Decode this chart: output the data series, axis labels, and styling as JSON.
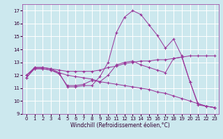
{
  "xlabel": "Windchill (Refroidissement éolien,°C)",
  "bg_color": "#cce8ee",
  "line_color": "#993399",
  "grid_color": "#ffffff",
  "ylim": [
    9,
    17.5
  ],
  "xlim": [
    -0.5,
    23.5
  ],
  "yticks": [
    9,
    10,
    11,
    12,
    13,
    14,
    15,
    16,
    17
  ],
  "xticks": [
    0,
    1,
    2,
    3,
    4,
    5,
    6,
    7,
    8,
    9,
    10,
    11,
    12,
    13,
    14,
    15,
    16,
    17,
    18,
    19,
    20,
    21,
    22,
    23
  ],
  "series": [
    {
      "x": [
        0,
        1,
        2,
        3,
        4,
        5,
        6,
        7,
        8,
        9,
        10,
        11,
        12,
        13,
        14,
        15,
        16,
        17,
        18,
        19,
        20,
        21,
        22,
        23
      ],
      "y": [
        11.8,
        12.6,
        12.6,
        12.5,
        12.2,
        11.1,
        11.1,
        11.2,
        11.2,
        11.9,
        13.0,
        15.3,
        16.5,
        17.0,
        16.7,
        15.9,
        15.1,
        14.1,
        14.8,
        13.5,
        11.5,
        9.7,
        9.6,
        9.5
      ]
    },
    {
      "x": [
        0,
        1,
        2,
        3,
        4,
        5,
        6,
        7,
        8,
        9,
        10,
        11,
        12,
        13,
        14,
        15,
        16,
        17,
        18,
        19,
        20,
        21,
        22,
        23
      ],
      "y": [
        12.0,
        12.6,
        12.6,
        12.5,
        12.4,
        12.3,
        12.3,
        12.3,
        12.3,
        12.4,
        12.6,
        12.7,
        12.9,
        13.0,
        13.1,
        13.1,
        13.2,
        13.2,
        13.3,
        13.4,
        13.5,
        13.5,
        13.5,
        13.5
      ]
    },
    {
      "x": [
        0,
        1,
        2,
        3,
        4,
        5,
        6,
        7,
        8,
        9,
        10,
        11,
        12,
        13,
        14,
        15,
        16,
        17,
        18,
        19,
        20,
        21,
        22,
        23
      ],
      "y": [
        12.0,
        12.5,
        12.5,
        12.4,
        12.2,
        12.0,
        11.9,
        11.8,
        11.7,
        11.5,
        11.4,
        11.3,
        11.2,
        11.1,
        11.0,
        10.9,
        10.7,
        10.6,
        10.4,
        10.2,
        10.0,
        9.8,
        9.6,
        9.5
      ]
    },
    {
      "x": [
        0,
        1,
        2,
        3,
        4,
        5,
        6,
        7,
        8,
        9,
        10,
        11,
        12,
        13,
        14,
        15,
        16,
        17,
        18,
        19,
        20,
        21,
        22,
        23
      ],
      "y": [
        11.8,
        12.5,
        12.5,
        12.4,
        12.1,
        11.2,
        11.2,
        11.3,
        11.6,
        11.5,
        12.0,
        12.8,
        13.0,
        13.1,
        12.8,
        12.6,
        12.4,
        12.2,
        13.3,
        13.4,
        11.5,
        9.8,
        9.6,
        9.5
      ]
    }
  ]
}
